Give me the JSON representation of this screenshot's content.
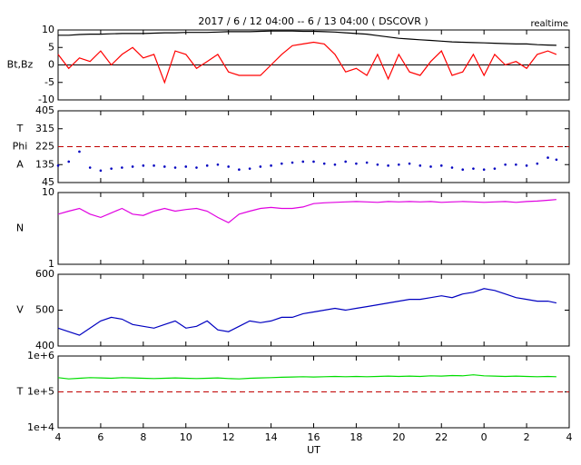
{
  "chart_data": [
    {
      "type": "line",
      "title": "2017 / 6 / 12  04:00 -- 6 / 13  04:00 ( DSCOVR )",
      "status": "realtime",
      "ylabel": "Bt,Bz",
      "x": [
        4,
        4.5,
        5,
        5.5,
        6,
        6.5,
        7,
        7.5,
        8,
        8.5,
        9,
        9.5,
        10,
        10.5,
        11,
        11.5,
        12,
        12.5,
        13,
        13.5,
        14,
        14.5,
        15,
        15.5,
        16,
        16.5,
        17,
        17.5,
        18,
        18.5,
        19,
        19.5,
        20,
        20.5,
        21,
        21.5,
        22,
        22.5,
        23,
        23.5,
        24,
        24.5,
        25,
        25.5,
        26,
        26.5,
        27,
        27.4
      ],
      "series": [
        {
          "name": "Bt",
          "color": "#000000",
          "values": [
            8.5,
            8.5,
            8.7,
            8.8,
            8.8,
            8.9,
            9,
            9,
            9,
            9.1,
            9.2,
            9.2,
            9.3,
            9.3,
            9.3,
            9.4,
            9.5,
            9.5,
            9.5,
            9.6,
            9.7,
            9.7,
            9.7,
            9.6,
            9.6,
            9.5,
            9.4,
            9.2,
            9,
            8.8,
            8.4,
            8,
            7.6,
            7.4,
            7.2,
            7,
            6.8,
            6.6,
            6.5,
            6.4,
            6.3,
            6.2,
            6.1,
            6,
            6,
            5.8,
            5.7,
            5.6
          ]
        },
        {
          "name": "Bz",
          "color": "#ff0000",
          "values": [
            3,
            -1,
            2,
            1,
            4,
            0,
            3,
            5,
            2,
            3,
            -5,
            4,
            3,
            -1,
            1,
            3,
            -2,
            -3,
            -3,
            -3,
            0,
            3,
            5.5,
            6,
            6.5,
            6,
            3,
            -2,
            -1,
            -3,
            3,
            -4,
            3,
            -2,
            -3,
            1,
            4,
            -3,
            -2,
            3,
            -3,
            3,
            0,
            1,
            -1,
            3,
            4,
            3
          ]
        }
      ],
      "xlim": [
        4,
        28
      ],
      "ylim": [
        -10,
        10
      ],
      "yticks": [
        -10,
        -5,
        0,
        5,
        10
      ],
      "reference_line": 0,
      "reference_color": "#000000",
      "reference_dash": false
    },
    {
      "type": "scatter",
      "ylabels": [
        "A",
        "Phi",
        "T"
      ],
      "x": [
        4,
        4.5,
        5,
        5.5,
        6,
        6.5,
        7,
        7.5,
        8,
        8.5,
        9,
        9.5,
        10,
        10.5,
        11,
        11.5,
        12,
        12.5,
        13,
        13.5,
        14,
        14.5,
        15,
        15.5,
        16,
        16.5,
        17,
        17.5,
        18,
        18.5,
        19,
        19.5,
        20,
        20.5,
        21,
        21.5,
        22,
        22.5,
        23,
        23.5,
        24,
        24.5,
        25,
        25.5,
        26,
        26.5,
        27,
        27.4
      ],
      "series": [
        {
          "name": "Phi",
          "color": "#0000c0",
          "values": [
            130,
            150,
            200,
            120,
            105,
            115,
            120,
            125,
            130,
            130,
            125,
            120,
            125,
            120,
            130,
            135,
            125,
            110,
            115,
            125,
            130,
            140,
            145,
            150,
            150,
            140,
            135,
            150,
            140,
            145,
            135,
            130,
            135,
            140,
            130,
            125,
            130,
            120,
            110,
            115,
            110,
            115,
            135,
            135,
            130,
            140,
            170,
            160
          ]
        }
      ],
      "xlim": [
        4,
        28
      ],
      "ylim": [
        45,
        405
      ],
      "yticks": [
        45,
        135,
        225,
        315,
        405
      ],
      "reference_line": 225,
      "reference_color": "#c00000",
      "reference_dash": true
    },
    {
      "type": "line",
      "ylabel": "N",
      "log_y": true,
      "x": [
        4,
        4.5,
        5,
        5.5,
        6,
        6.5,
        7,
        7.5,
        8,
        8.5,
        9,
        9.5,
        10,
        10.5,
        11,
        11.5,
        12,
        12.5,
        13,
        13.5,
        14,
        14.5,
        15,
        15.5,
        16,
        16.5,
        17,
        17.5,
        18,
        18.5,
        19,
        19.5,
        20,
        20.5,
        21,
        21.5,
        22,
        22.5,
        23,
        23.5,
        24,
        24.5,
        25,
        25.5,
        26,
        26.5,
        27,
        27.4
      ],
      "series": [
        {
          "name": "N",
          "color": "#e000e0",
          "values": [
            5,
            5.5,
            6,
            5,
            4.5,
            5.2,
            6,
            5,
            4.8,
            5.5,
            6,
            5.5,
            5.8,
            6,
            5.5,
            4.5,
            3.8,
            5,
            5.5,
            6,
            6.2,
            6,
            6,
            6.3,
            7,
            7.2,
            7.3,
            7.4,
            7.5,
            7.4,
            7.3,
            7.5,
            7.4,
            7.5,
            7.4,
            7.5,
            7.3,
            7.4,
            7.5,
            7.4,
            7.3,
            7.4,
            7.5,
            7.3,
            7.5,
            7.6,
            7.8,
            8
          ]
        }
      ],
      "xlim": [
        4,
        28
      ],
      "ylim": [
        1,
        10
      ],
      "yticks": [
        1,
        10
      ]
    },
    {
      "type": "line",
      "ylabel": "V",
      "x": [
        4,
        4.5,
        5,
        5.5,
        6,
        6.5,
        7,
        7.5,
        8,
        8.5,
        9,
        9.5,
        10,
        10.5,
        11,
        11.5,
        12,
        12.5,
        13,
        13.5,
        14,
        14.5,
        15,
        15.5,
        16,
        16.5,
        17,
        17.5,
        18,
        18.5,
        19,
        19.5,
        20,
        20.5,
        21,
        21.5,
        22,
        22.5,
        23,
        23.5,
        24,
        24.5,
        25,
        25.5,
        26,
        26.5,
        27,
        27.4
      ],
      "series": [
        {
          "name": "V",
          "color": "#0000c0",
          "values": [
            450,
            440,
            430,
            450,
            470,
            480,
            475,
            460,
            455,
            450,
            460,
            470,
            450,
            455,
            470,
            445,
            440,
            455,
            470,
            465,
            470,
            480,
            480,
            490,
            495,
            500,
            505,
            500,
            505,
            510,
            515,
            520,
            525,
            530,
            530,
            535,
            540,
            535,
            545,
            550,
            560,
            555,
            545,
            535,
            530,
            525,
            525,
            520
          ]
        }
      ],
      "xlim": [
        4,
        28
      ],
      "ylim": [
        400,
        600
      ],
      "yticks": [
        400,
        500,
        600
      ]
    },
    {
      "type": "line",
      "ylabel": "T",
      "log_y": true,
      "xlabel": "UT",
      "x": [
        4,
        4.5,
        5,
        5.5,
        6,
        6.5,
        7,
        7.5,
        8,
        8.5,
        9,
        9.5,
        10,
        10.5,
        11,
        11.5,
        12,
        12.5,
        13,
        13.5,
        14,
        14.5,
        15,
        15.5,
        16,
        16.5,
        17,
        17.5,
        18,
        18.5,
        19,
        19.5,
        20,
        20.5,
        21,
        21.5,
        22,
        22.5,
        23,
        23.5,
        24,
        24.5,
        25,
        25.5,
        26,
        26.5,
        27,
        27.4
      ],
      "series": [
        {
          "name": "T",
          "color": "#00dd00",
          "values": [
            250000,
            230000,
            240000,
            250000,
            245000,
            240000,
            250000,
            245000,
            240000,
            235000,
            240000,
            245000,
            240000,
            235000,
            240000,
            245000,
            235000,
            230000,
            240000,
            245000,
            250000,
            255000,
            260000,
            265000,
            260000,
            265000,
            270000,
            265000,
            270000,
            265000,
            270000,
            275000,
            270000,
            275000,
            270000,
            280000,
            275000,
            285000,
            280000,
            300000,
            280000,
            275000,
            270000,
            275000,
            270000,
            265000,
            270000,
            265000
          ]
        }
      ],
      "xlim": [
        4,
        28
      ],
      "ylim": [
        10000,
        1000000
      ],
      "yticks": [
        {
          "value": 10000,
          "label": "1e+4"
        },
        {
          "value": 100000,
          "label": "1e+5"
        },
        {
          "value": 1000000,
          "label": "1e+6"
        }
      ],
      "reference_line": 100000,
      "reference_color": "#c00000",
      "reference_dash": true,
      "xticks": [
        4,
        6,
        8,
        10,
        12,
        14,
        16,
        18,
        20,
        22,
        {
          "value": 24,
          "label": "0"
        },
        {
          "value": 26,
          "label": "2"
        },
        {
          "value": 28,
          "label": "4"
        }
      ]
    }
  ]
}
